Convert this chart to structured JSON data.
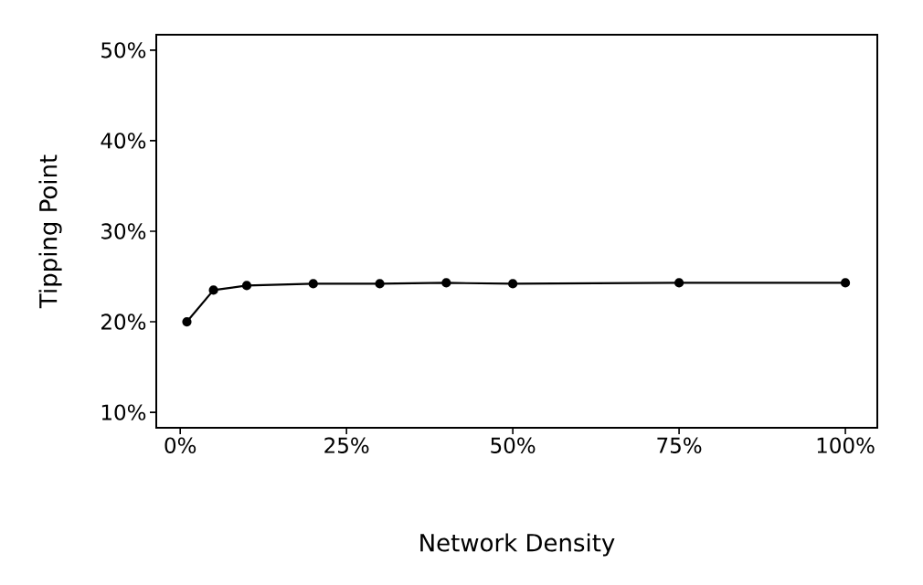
{
  "chart_data": {
    "type": "line",
    "xlabel": "Network Density",
    "ylabel": "Tipping Point",
    "x": [
      1,
      5,
      10,
      20,
      30,
      40,
      50,
      75,
      100
    ],
    "series": [
      {
        "color": "#000000",
        "values": [
          20,
          23.5,
          24,
          24.2,
          24.2,
          24.3,
          24.2,
          24.3,
          24.3
        ]
      }
    ],
    "marker": "circle",
    "line_style": "solid",
    "xlim": [
      -3.6,
      104.8
    ],
    "ylim": [
      8.3,
      51.7
    ],
    "xticks": [
      {
        "value": 0,
        "label": "0%"
      },
      {
        "value": 25,
        "label": "25%"
      },
      {
        "value": 50,
        "label": "50%"
      },
      {
        "value": 75,
        "label": "75%"
      },
      {
        "value": 100,
        "label": "100%"
      }
    ],
    "yticks": [
      {
        "value": 10,
        "label": "10%"
      },
      {
        "value": 20,
        "label": "20%"
      },
      {
        "value": 30,
        "label": "30%"
      },
      {
        "value": 40,
        "label": "40%"
      },
      {
        "value": 50,
        "label": "50%"
      }
    ]
  }
}
